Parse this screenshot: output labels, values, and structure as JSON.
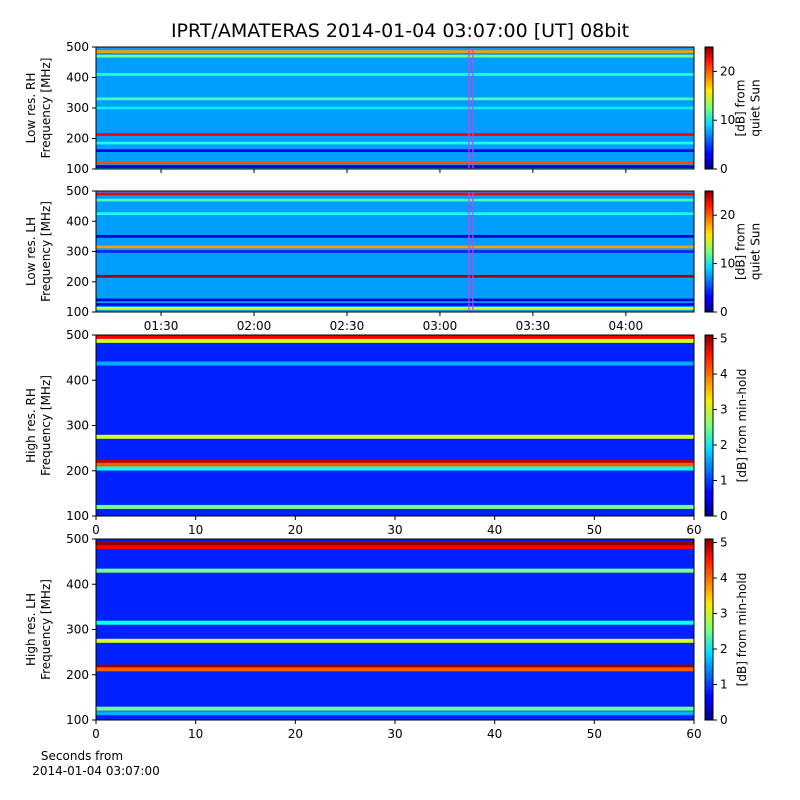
{
  "figure": {
    "title": "IPRT/AMATERAS 2014-01-04 03:07:00 [UT]   08bit"
  },
  "chart_data": [
    {
      "type": "heatmap",
      "ylabel": [
        "Low res. RH",
        "Frequency [MHz]"
      ],
      "xlim": [
        69,
        262
      ],
      "xticks": [
        90,
        120,
        150,
        180,
        210,
        240
      ],
      "ylim": [
        100,
        500
      ],
      "yticks": [
        100,
        200,
        300,
        400,
        500
      ],
      "clim": [
        0,
        25
      ],
      "cticks": [
        0,
        10,
        20
      ],
      "clabel": [
        "[dB] from",
        "quiet Sun"
      ],
      "background": 7,
      "marker_x": 190,
      "marker_color": "#cc44dd",
      "bands": [
        {
          "freq": 485,
          "value": 18
        },
        {
          "freq": 470,
          "value": 12
        },
        {
          "freq": 410,
          "value": 10
        },
        {
          "freq": 330,
          "value": 11
        },
        {
          "freq": 300,
          "value": 9
        },
        {
          "freq": 213,
          "value": 22
        },
        {
          "freq": 185,
          "value": 10
        },
        {
          "freq": 160,
          "value": 3
        },
        {
          "freq": 120,
          "value": 20
        },
        {
          "freq": 108,
          "value": 2
        }
      ]
    },
    {
      "type": "heatmap",
      "ylabel": [
        "Low res. LH",
        "Frequency [MHz]"
      ],
      "xlim": [
        69,
        262
      ],
      "xticks": [
        {
          "value": 90,
          "label": "01:30"
        },
        {
          "value": 120,
          "label": "02:00"
        },
        {
          "value": 150,
          "label": "02:30"
        },
        {
          "value": 180,
          "label": "03:00"
        },
        {
          "value": 210,
          "label": "03:30"
        },
        {
          "value": 240,
          "label": "04:00"
        }
      ],
      "ylim": [
        100,
        500
      ],
      "yticks": [
        100,
        200,
        300,
        400,
        500
      ],
      "clim": [
        0,
        25
      ],
      "cticks": [
        0,
        10,
        20
      ],
      "clabel": [
        "[dB] from",
        "quiet Sun"
      ],
      "background": 7,
      "marker_x": 190,
      "marker_color": "#cc44dd",
      "bands": [
        {
          "freq": 490,
          "value": 22
        },
        {
          "freq": 470,
          "value": 11
        },
        {
          "freq": 425,
          "value": 10
        },
        {
          "freq": 350,
          "value": 2
        },
        {
          "freq": 315,
          "value": 18
        },
        {
          "freq": 300,
          "value": 4
        },
        {
          "freq": 218,
          "value": 24
        },
        {
          "freq": 140,
          "value": 2
        },
        {
          "freq": 125,
          "value": 3
        },
        {
          "freq": 112,
          "value": 15
        }
      ]
    },
    {
      "type": "heatmap",
      "ylabel": [
        "High res. RH",
        "Frequency [MHz]"
      ],
      "xlim": [
        0,
        60
      ],
      "xticks": [
        0,
        10,
        20,
        30,
        40,
        50,
        60
      ],
      "ylim": [
        100,
        500
      ],
      "yticks": [
        100,
        200,
        300,
        400,
        500
      ],
      "clim": [
        0,
        5.1
      ],
      "cticks": [
        0,
        1,
        2,
        3,
        4,
        5
      ],
      "clabel": [
        "[dB] from min-hold"
      ],
      "background": 0.8,
      "bands": [
        {
          "freq": 495,
          "value": 4.5
        },
        {
          "freq": 487,
          "value": 3
        },
        {
          "freq": 437,
          "value": 1.5
        },
        {
          "freq": 275,
          "value": 3
        },
        {
          "freq": 220,
          "value": 4.8
        },
        {
          "freq": 213,
          "value": 4
        },
        {
          "freq": 205,
          "value": 2
        },
        {
          "freq": 120,
          "value": 2.5
        }
      ]
    },
    {
      "type": "heatmap",
      "ylabel": [
        "High res. LH",
        "Frequency [MHz]"
      ],
      "xlabel": [
        "Seconds from",
        "2014-01-04 03:07:00"
      ],
      "xlim": [
        0,
        60
      ],
      "xticks": [
        0,
        10,
        20,
        30,
        40,
        50,
        60
      ],
      "ylim": [
        100,
        500
      ],
      "yticks": [
        100,
        200,
        300,
        400,
        500
      ],
      "clim": [
        0,
        5.1
      ],
      "cticks": [
        0,
        1,
        2,
        3,
        4,
        5
      ],
      "clabel": [
        "[dB] from min-hold"
      ],
      "background": 0.8,
      "bands": [
        {
          "freq": 490,
          "value": 5
        },
        {
          "freq": 482,
          "value": 4.5
        },
        {
          "freq": 430,
          "value": 2.5
        },
        {
          "freq": 315,
          "value": 2
        },
        {
          "freq": 275,
          "value": 3
        },
        {
          "freq": 218,
          "value": 5
        },
        {
          "freq": 212,
          "value": 4
        },
        {
          "freq": 125,
          "value": 2.5
        },
        {
          "freq": 115,
          "value": 1.5
        }
      ]
    }
  ]
}
